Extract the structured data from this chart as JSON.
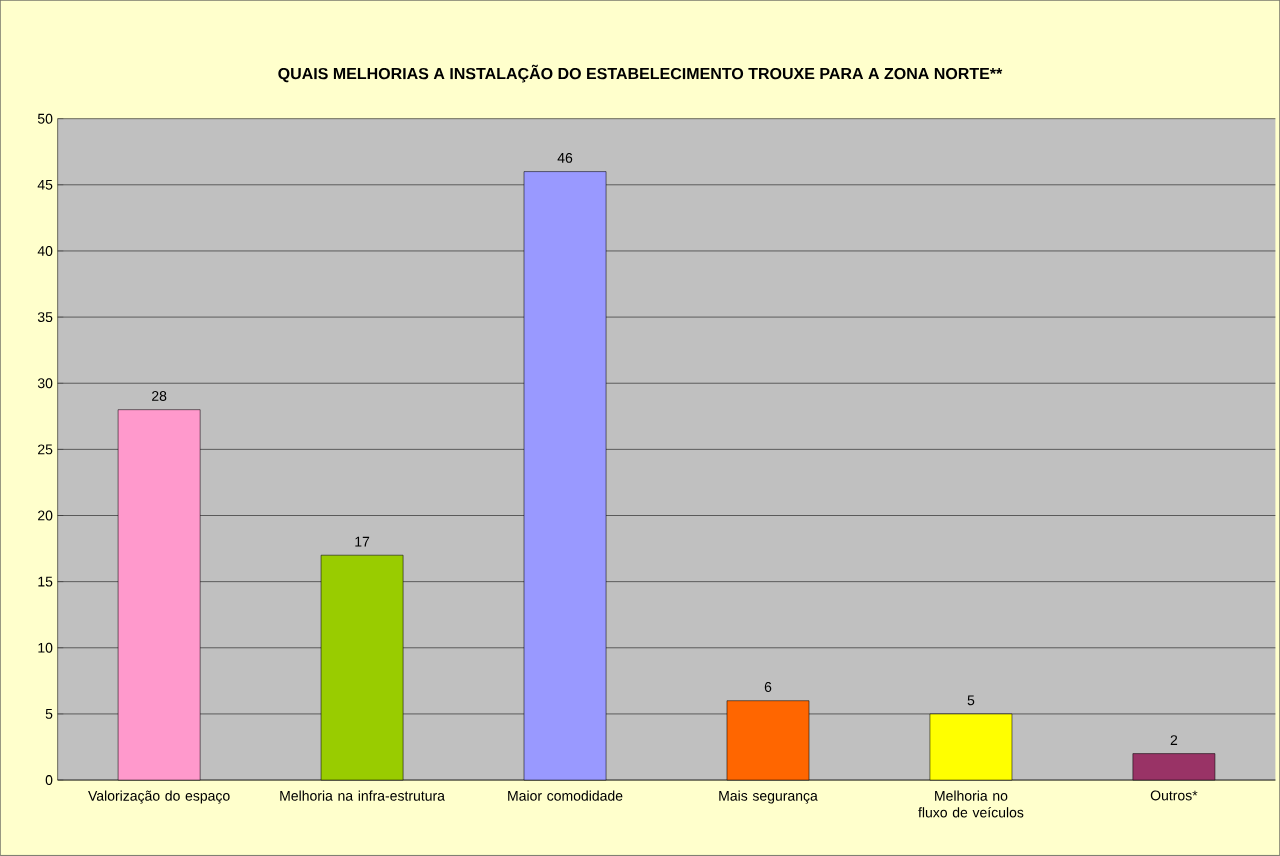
{
  "chart_data": {
    "type": "bar",
    "title": "QUAIS MELHORIAS A INSTALAÇÃO DO ESTABELECIMENTO TROUXE PARA A ZONA NORTE**",
    "categories": [
      "Valorização do espaço",
      "Melhoria na infra-estrutura",
      "Maior comodidade",
      "Mais segurança",
      "Melhoria no fluxo de veículos",
      "Outros*"
    ],
    "values": [
      28,
      17,
      46,
      6,
      5,
      2
    ],
    "colors": [
      "#ff99cc",
      "#99cc00",
      "#9999ff",
      "#ff6600",
      "#ffff00",
      "#993366"
    ],
    "ylim": [
      0,
      50
    ],
    "yticks": [
      0,
      5,
      10,
      15,
      20,
      25,
      30,
      35,
      40,
      45,
      50
    ],
    "grid": "y",
    "data_labels": true
  }
}
